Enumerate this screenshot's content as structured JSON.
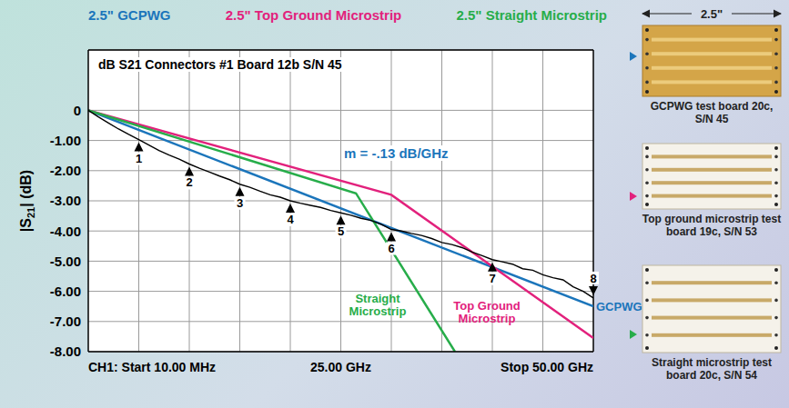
{
  "chart_data": {
    "type": "line",
    "title": "dB S21 Connectors #1 Board 12b S/N 45",
    "y_label": "|S21| (dB)",
    "annotation": "m = -.13 dB/GHz",
    "legend": "top",
    "grid": true,
    "xlim": [
      0,
      50
    ],
    "xticks": [
      {
        "value": 0,
        "label": "CH1: Start 10.00 MHz"
      },
      {
        "value": 25,
        "label": "25.00 GHz"
      },
      {
        "value": 50,
        "label": "Stop 50.00 GHz"
      }
    ],
    "ylim": [
      -8,
      2
    ],
    "yticks": [
      0,
      {
        "value": -1,
        "label": "-1.00"
      },
      {
        "value": -2,
        "label": "-2.00"
      },
      {
        "value": -3,
        "label": "-3.00"
      },
      {
        "value": -4,
        "label": "-4.00"
      },
      {
        "value": -5,
        "label": "-5.00"
      },
      {
        "value": -6,
        "label": "-6.00"
      },
      {
        "value": -7,
        "label": "-7.00"
      },
      {
        "value": -8,
        "label": "-8.00"
      }
    ],
    "series": [
      {
        "name": "2.5\" GCPWG",
        "color": "#1b75bb",
        "end_label": "GCPWG",
        "x": [
          0,
          50
        ],
        "values": [
          0,
          -6.5
        ]
      },
      {
        "name": "2.5\" Top Ground Microstrip",
        "color": "#e2217c",
        "end_label": "Top Ground Microstrip",
        "x": [
          0,
          30,
          50
        ],
        "values": [
          0,
          -2.8,
          -7.55
        ]
      },
      {
        "name": "2.5\" Straight Microstrip",
        "color": "#27ad4a",
        "end_label": "Straight Microstrip",
        "x": [
          0,
          26.5,
          36.3
        ],
        "values": [
          0,
          -2.75,
          -8
        ]
      },
      {
        "color": "#000000",
        "x": [
          0,
          1,
          2,
          3,
          4,
          5,
          6,
          7,
          8,
          9,
          10,
          11,
          12,
          13,
          14,
          15,
          16,
          17,
          18,
          19,
          20,
          21,
          22,
          23,
          24,
          25,
          26,
          27,
          28,
          29,
          30,
          31,
          32,
          33,
          34,
          35,
          36,
          37,
          38,
          39,
          40,
          41,
          42,
          43,
          44,
          45,
          46,
          47,
          48,
          49,
          50
        ],
        "values": [
          0,
          -0.22,
          -0.42,
          -0.62,
          -0.8,
          -0.97,
          -1.15,
          -1.33,
          -1.48,
          -1.62,
          -1.78,
          -1.92,
          -2.05,
          -2.18,
          -2.3,
          -2.45,
          -2.55,
          -2.68,
          -2.8,
          -2.88,
          -3,
          -3.08,
          -3.15,
          -3.22,
          -3.32,
          -3.4,
          -3.48,
          -3.58,
          -3.65,
          -3.78,
          -3.95,
          -4,
          -4.08,
          -4.15,
          -4.25,
          -4.38,
          -4.45,
          -4.55,
          -4.7,
          -4.82,
          -4.95,
          -5.02,
          -5.1,
          -5.25,
          -5.3,
          -5.45,
          -5.55,
          -5.62,
          -5.85,
          -6,
          -6.22
        ]
      }
    ],
    "markers": [
      {
        "label": "1",
        "x": 5,
        "y": -0.97
      },
      {
        "label": "2",
        "x": 10,
        "y": -1.78
      },
      {
        "label": "3",
        "x": 15,
        "y": -2.45
      },
      {
        "label": "4",
        "x": 20,
        "y": -3
      },
      {
        "label": "5",
        "x": 25,
        "y": -3.4
      },
      {
        "label": "6",
        "x": 30,
        "y": -3.95
      },
      {
        "label": "7",
        "x": 40,
        "y": -4.95
      },
      {
        "label": "8",
        "x": 50,
        "y": -6.22
      }
    ]
  },
  "boards": {
    "dimension": "2.5\"",
    "captions": [
      "GCPWG test board 20c, S/N 45",
      "Top ground microstrip test board 19c, S/N 53",
      "Straight microstrip test board 20c, S/N 54"
    ]
  }
}
